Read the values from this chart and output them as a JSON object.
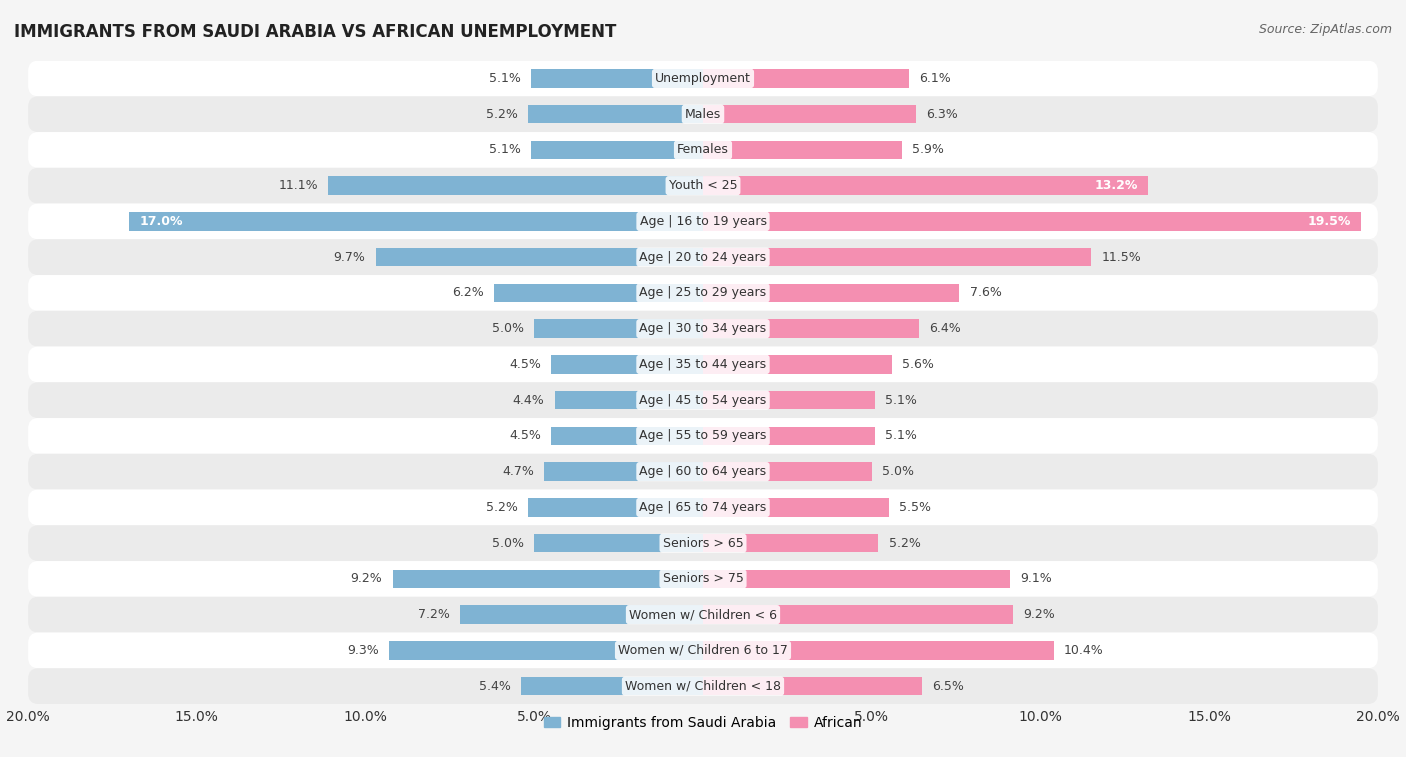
{
  "title": "IMMIGRANTS FROM SAUDI ARABIA VS AFRICAN UNEMPLOYMENT",
  "source": "Source: ZipAtlas.com",
  "categories": [
    "Unemployment",
    "Males",
    "Females",
    "Youth < 25",
    "Age | 16 to 19 years",
    "Age | 20 to 24 years",
    "Age | 25 to 29 years",
    "Age | 30 to 34 years",
    "Age | 35 to 44 years",
    "Age | 45 to 54 years",
    "Age | 55 to 59 years",
    "Age | 60 to 64 years",
    "Age | 65 to 74 years",
    "Seniors > 65",
    "Seniors > 75",
    "Women w/ Children < 6",
    "Women w/ Children 6 to 17",
    "Women w/ Children < 18"
  ],
  "saudi_values": [
    5.1,
    5.2,
    5.1,
    11.1,
    17.0,
    9.7,
    6.2,
    5.0,
    4.5,
    4.4,
    4.5,
    4.7,
    5.2,
    5.0,
    9.2,
    7.2,
    9.3,
    5.4
  ],
  "african_values": [
    6.1,
    6.3,
    5.9,
    13.2,
    19.5,
    11.5,
    7.6,
    6.4,
    5.6,
    5.1,
    5.1,
    5.0,
    5.5,
    5.2,
    9.1,
    9.2,
    10.4,
    6.5
  ],
  "saudi_color": "#7fb3d3",
  "african_color": "#f48fb1",
  "saudi_label": "Immigrants from Saudi Arabia",
  "african_label": "African",
  "background_color": "#f5f5f5",
  "row_color_even": "#ffffff",
  "row_color_odd": "#ebebeb",
  "xlim": 20.0,
  "title_fontsize": 12,
  "source_fontsize": 9,
  "axis_fontsize": 10,
  "label_fontsize": 9,
  "cat_fontsize": 9,
  "white_label_threshold": 12.0
}
